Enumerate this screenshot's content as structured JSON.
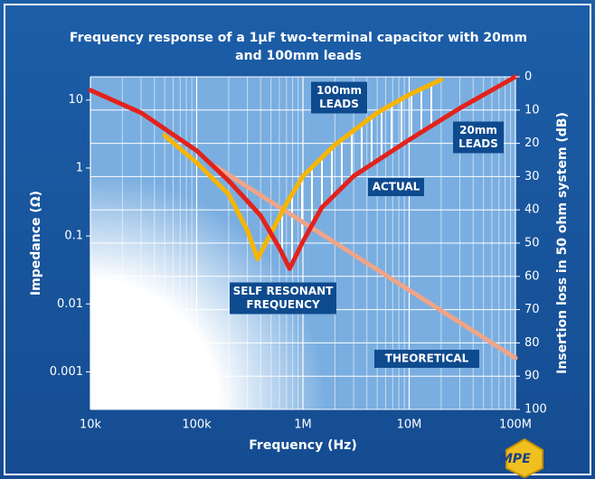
{
  "chart_data": {
    "type": "line",
    "title": "Frequency response of a 1µF two-terminal capacitor with 20mm and 100mm leads",
    "xlabel": "Frequency (Hz)",
    "ylabel": "Impedance (Ω)",
    "y2label": "Insertion loss in 50 ohm system (dB)",
    "xlog": true,
    "ylog": true,
    "grid": true,
    "xlim": [
      10000,
      100000000
    ],
    "xticks": [
      {
        "value": 10000,
        "label": "10k"
      },
      {
        "value": 100000,
        "label": "100k"
      },
      {
        "value": 1000000,
        "label": "1M"
      },
      {
        "value": 10000000,
        "label": "10M"
      },
      {
        "value": 100000000,
        "label": "100M"
      }
    ],
    "ylim": [
      0.00028,
      22
    ],
    "yticks": [
      10,
      1,
      0.1,
      0.01,
      0.001
    ],
    "y2lim": [
      100,
      0
    ],
    "y2ticks": [
      0,
      10,
      20,
      30,
      40,
      50,
      60,
      70,
      80,
      90,
      100
    ],
    "series": [
      {
        "color": "#f0a488",
        "x": [
          150000,
          100000000
        ],
        "values": [
          1.06,
          0.0016
        ]
      },
      {
        "color": "#f7b500",
        "x": [
          50000,
          100000,
          200000,
          300000,
          375000,
          500000,
          700000,
          1000000,
          2000000,
          5000000,
          10000000,
          20000000
        ],
        "values": [
          3.0,
          1.2,
          0.41,
          0.12,
          0.046,
          0.11,
          0.3,
          0.76,
          2.2,
          6.5,
          12,
          20
        ]
      },
      {
        "color": "#e3221b",
        "x": [
          10000,
          30000,
          100000,
          200000,
          400000,
          600000,
          750000,
          1000000,
          1500000,
          3000000,
          10000000,
          30000000,
          100000000
        ],
        "values": [
          14,
          6.5,
          1.8,
          0.65,
          0.2,
          0.067,
          0.033,
          0.083,
          0.26,
          0.76,
          2.6,
          7.6,
          22
        ]
      }
    ],
    "annotations": [
      {
        "lines": [
          "100mm",
          "LEADS"
        ]
      },
      {
        "lines": [
          "20mm",
          "LEADS"
        ]
      },
      {
        "lines": [
          "ACTUAL"
        ]
      },
      {
        "lines": [
          "SELF RESONANT",
          "FREQUENCY"
        ]
      },
      {
        "lines": [
          "THEORETICAL"
        ]
      }
    ],
    "logo": "MPE"
  }
}
